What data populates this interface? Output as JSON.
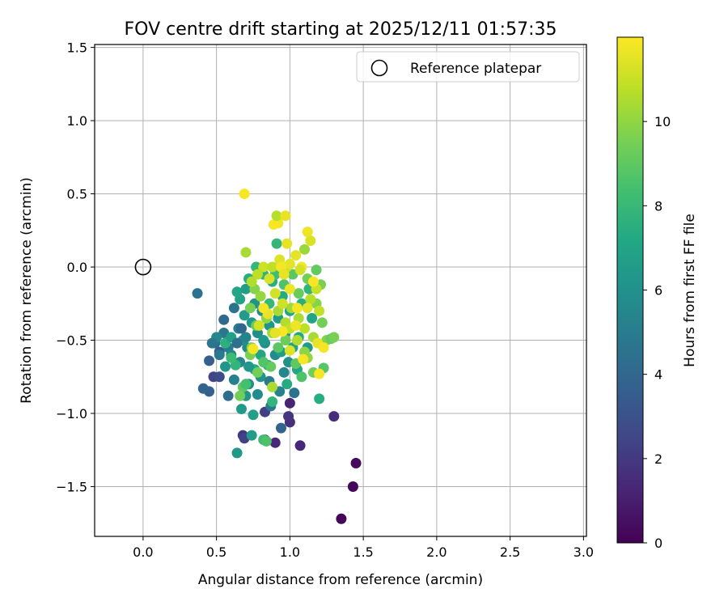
{
  "chart_data": {
    "type": "scatter",
    "title": "FOV centre drift starting at 2025/12/11 01:57:35",
    "xlabel": "Angular distance from reference (arcmin)",
    "ylabel": "Rotation from reference (arcmin)",
    "xlim": [
      -0.33,
      3.02
    ],
    "ylim": [
      -1.84,
      1.52
    ],
    "xticks": [
      0.0,
      0.5,
      1.0,
      1.5,
      2.0,
      2.5,
      3.0
    ],
    "xtick_labels": [
      "0.0",
      "0.5",
      "1.0",
      "1.5",
      "2.0",
      "2.5",
      "3.0"
    ],
    "yticks": [
      -1.5,
      -1.0,
      -0.5,
      0.0,
      0.5,
      1.0,
      1.5
    ],
    "ytick_labels": [
      "−1.5",
      "−1.0",
      "−0.5",
      "0.0",
      "0.5",
      "1.0",
      "1.5"
    ],
    "grid": true,
    "legend": {
      "location": "top-right",
      "entries": [
        "Reference platepar"
      ]
    },
    "reference_point": {
      "x": 0.0,
      "y": 0.0,
      "label": "Reference platepar"
    },
    "colorbar": {
      "label": "Hours from first FF file",
      "range": [
        0,
        12
      ],
      "ticks": [
        0,
        2,
        4,
        6,
        8,
        10
      ],
      "tick_labels": [
        "0",
        "2",
        "4",
        "6",
        "8",
        "10"
      ],
      "colormap": "viridis"
    },
    "points": [
      [
        1.35,
        -1.72,
        0.1
      ],
      [
        1.43,
        -1.5,
        0.2
      ],
      [
        1.45,
        -1.34,
        0.3
      ],
      [
        1.3,
        -1.02,
        1.5
      ],
      [
        1.07,
        -1.22,
        1.3
      ],
      [
        1.0,
        -1.06,
        1.6
      ],
      [
        0.99,
        -1.02,
        1.8
      ],
      [
        0.9,
        -1.2,
        1.4
      ],
      [
        0.83,
        -1.18,
        2.6
      ],
      [
        0.68,
        -1.15,
        1.9
      ],
      [
        0.69,
        -1.17,
        2.3
      ],
      [
        1.0,
        -0.93,
        1.2
      ],
      [
        0.83,
        -0.99,
        2.2
      ],
      [
        0.48,
        -0.75,
        2.4
      ],
      [
        0.52,
        -0.75,
        2.7
      ],
      [
        0.94,
        -1.1,
        3.9
      ],
      [
        0.45,
        -0.85,
        3.7
      ],
      [
        0.41,
        -0.83,
        3.9
      ],
      [
        0.45,
        -0.64,
        3.6
      ],
      [
        0.52,
        -0.58,
        3.3
      ],
      [
        0.58,
        -0.88,
        4.2
      ],
      [
        0.37,
        -0.18,
        4.5
      ],
      [
        0.55,
        -0.36,
        4.1
      ],
      [
        0.49,
        -0.52,
        4.3
      ],
      [
        0.62,
        -0.28,
        4.6
      ],
      [
        0.55,
        -0.45,
        4.8
      ],
      [
        0.58,
        -0.55,
        5.0
      ],
      [
        0.62,
        -0.77,
        5.2
      ],
      [
        0.66,
        -0.65,
        5.4
      ],
      [
        0.71,
        -0.55,
        5.6
      ],
      [
        0.64,
        -1.27,
        6.4
      ],
      [
        0.74,
        -1.15,
        6.6
      ],
      [
        0.75,
        -1.01,
        6.8
      ],
      [
        0.67,
        -0.97,
        6.5
      ],
      [
        0.7,
        -0.88,
        6.2
      ],
      [
        0.78,
        -0.87,
        5.7
      ],
      [
        0.8,
        -0.75,
        6.1
      ],
      [
        0.72,
        -0.8,
        5.9
      ],
      [
        0.86,
        -0.78,
        5.0
      ],
      [
        0.87,
        -0.95,
        4.8
      ],
      [
        0.93,
        -0.85,
        5.3
      ],
      [
        0.96,
        -0.72,
        5.5
      ],
      [
        1.03,
        -0.86,
        4.6
      ],
      [
        0.9,
        -0.6,
        5.6
      ],
      [
        0.83,
        -0.52,
        6.0
      ],
      [
        0.78,
        -0.45,
        5.8
      ],
      [
        0.74,
        -0.38,
        6.3
      ],
      [
        0.69,
        -0.33,
        6.6
      ],
      [
        0.66,
        -0.22,
        6.9
      ],
      [
        0.64,
        -0.17,
        7.1
      ],
      [
        0.7,
        -0.15,
        6.7
      ],
      [
        0.76,
        -0.25,
        6.1
      ],
      [
        0.81,
        -0.3,
        5.7
      ],
      [
        0.86,
        -0.4,
        6.2
      ],
      [
        0.92,
        -0.35,
        6.5
      ],
      [
        0.97,
        -0.45,
        6.8
      ],
      [
        1.02,
        -0.55,
        6.9
      ],
      [
        1.06,
        -0.48,
        7.2
      ],
      [
        1.0,
        -0.3,
        7.0
      ],
      [
        0.95,
        -0.2,
        7.3
      ],
      [
        0.88,
        -0.1,
        7.5
      ],
      [
        0.82,
        -0.05,
        7.7
      ],
      [
        0.77,
        0.0,
        7.9
      ],
      [
        0.72,
        -0.08,
        7.4
      ],
      [
        1.05,
        -0.7,
        7.1
      ],
      [
        1.1,
        -0.62,
        7.6
      ],
      [
        0.98,
        -0.8,
        7.3
      ],
      [
        0.85,
        -0.67,
        7.5
      ],
      [
        0.8,
        -0.6,
        7.0
      ],
      [
        0.76,
        -0.7,
        7.2
      ],
      [
        0.88,
        -0.92,
        7.8
      ],
      [
        0.82,
        -1.18,
        8.2
      ],
      [
        0.84,
        -1.19,
        8.6
      ],
      [
        1.2,
        -0.9,
        7.4
      ],
      [
        0.91,
        0.16,
        7.9
      ],
      [
        0.82,
        -0.5,
        6.4
      ],
      [
        0.68,
        -0.5,
        6.0
      ],
      [
        0.6,
        -0.6,
        5.5
      ],
      [
        0.65,
        -0.42,
        5.2
      ],
      [
        0.72,
        -0.68,
        6.3
      ],
      [
        0.94,
        -0.58,
        6.7
      ],
      [
        0.99,
        -0.65,
        6.0
      ],
      [
        1.12,
        -0.55,
        6.5
      ],
      [
        1.15,
        -0.35,
        7.0
      ],
      [
        1.08,
        -0.25,
        7.5
      ],
      [
        1.13,
        -0.15,
        7.8
      ],
      [
        0.86,
        -0.25,
        8.0
      ],
      [
        0.9,
        -0.05,
        8.3
      ],
      [
        0.96,
        -0.12,
        8.6
      ],
      [
        1.02,
        -0.05,
        8.9
      ],
      [
        1.06,
        -0.18,
        9.2
      ],
      [
        1.12,
        -0.08,
        9.4
      ],
      [
        1.18,
        -0.02,
        9.1
      ],
      [
        1.21,
        -0.12,
        9.6
      ],
      [
        1.18,
        -0.25,
        9.8
      ],
      [
        1.22,
        -0.38,
        9.4
      ],
      [
        1.25,
        -0.5,
        9.7
      ],
      [
        1.28,
        -0.49,
        9.2
      ],
      [
        1.3,
        -0.48,
        9.5
      ],
      [
        1.23,
        -0.69,
        8.8
      ],
      [
        1.16,
        -0.72,
        9.4
      ],
      [
        1.1,
        -0.58,
        9.9
      ],
      [
        1.04,
        -0.66,
        9.0
      ],
      [
        1.08,
        -0.75,
        8.6
      ],
      [
        0.97,
        -0.5,
        9.3
      ],
      [
        0.92,
        -0.55,
        8.9
      ],
      [
        0.87,
        -0.68,
        9.1
      ],
      [
        0.82,
        -0.65,
        8.7
      ],
      [
        0.78,
        -0.72,
        9.4
      ],
      [
        0.73,
        -0.6,
        9.6
      ],
      [
        0.68,
        -0.82,
        9.0
      ],
      [
        0.74,
        -0.55,
        9.8
      ],
      [
        0.77,
        -0.4,
        9.3
      ],
      [
        0.73,
        -0.28,
        9.5
      ],
      [
        0.76,
        -0.15,
        9.8
      ],
      [
        0.8,
        -0.2,
        10.1
      ],
      [
        0.84,
        -0.35,
        10.0
      ],
      [
        0.88,
        -0.45,
        10.2
      ],
      [
        0.92,
        -0.3,
        10.4
      ],
      [
        0.97,
        -0.38,
        10.6
      ],
      [
        1.01,
        -0.28,
        10.3
      ],
      [
        1.06,
        -0.35,
        10.5
      ],
      [
        1.1,
        -0.42,
        10.8
      ],
      [
        1.14,
        -0.22,
        10.7
      ],
      [
        1.18,
        -0.15,
        11.0
      ],
      [
        1.2,
        -0.3,
        10.9
      ],
      [
        1.16,
        -0.48,
        10.4
      ],
      [
        1.12,
        -0.62,
        10.1
      ],
      [
        1.05,
        -0.5,
        10.6
      ],
      [
        1.0,
        -0.42,
        10.9
      ],
      [
        0.95,
        -0.25,
        11.1
      ],
      [
        0.9,
        -0.18,
        11.2
      ],
      [
        0.86,
        -0.08,
        11.3
      ],
      [
        0.82,
        0.0,
        11.1
      ],
      [
        0.78,
        -0.05,
        10.8
      ],
      [
        0.74,
        -0.1,
        10.6
      ],
      [
        0.7,
        0.1,
        10.4
      ],
      [
        0.88,
        0.0,
        10.8
      ],
      [
        0.93,
        0.05,
        11.4
      ],
      [
        0.98,
        0.0,
        11.0
      ],
      [
        1.04,
        0.08,
        11.5
      ],
      [
        1.1,
        0.12,
        10.2
      ],
      [
        1.14,
        0.18,
        11.3
      ],
      [
        1.12,
        0.24,
        11.7
      ],
      [
        0.98,
        0.16,
        11.6
      ],
      [
        0.92,
        0.3,
        11.8
      ],
      [
        0.89,
        0.29,
        11.9
      ],
      [
        0.91,
        0.35,
        10.7
      ],
      [
        0.97,
        0.35,
        11.6
      ],
      [
        0.69,
        0.5,
        11.9
      ],
      [
        1.0,
        -0.15,
        11.7
      ],
      [
        1.05,
        -0.28,
        11.8
      ],
      [
        0.95,
        -0.44,
        11.9
      ],
      [
        0.9,
        -0.45,
        11.5
      ],
      [
        0.85,
        -0.32,
        11.6
      ],
      [
        0.82,
        -0.28,
        11.8
      ],
      [
        0.79,
        -0.4,
        11.2
      ],
      [
        0.75,
        -0.56,
        11.8
      ],
      [
        0.88,
        -0.82,
        10.5
      ],
      [
        1.0,
        -0.57,
        11.4
      ],
      [
        1.09,
        -0.63,
        11.9
      ],
      [
        1.04,
        -0.4,
        11.7
      ],
      [
        1.12,
        -0.28,
        11.5
      ],
      [
        1.16,
        -0.1,
        11.9
      ],
      [
        1.08,
        0.0,
        11.8
      ],
      [
        1.0,
        0.02,
        11.5
      ],
      [
        0.94,
        0.0,
        11.8
      ],
      [
        0.96,
        -0.05,
        11.6
      ],
      [
        1.07,
        -0.02,
        11.2
      ],
      [
        1.19,
        -0.52,
        11.6
      ],
      [
        1.23,
        -0.55,
        11.8
      ],
      [
        1.2,
        -0.73,
        11.9
      ],
      [
        0.66,
        -0.88,
        9.4
      ],
      [
        0.7,
        -0.8,
        8.4
      ],
      [
        0.63,
        -0.67,
        7.8
      ],
      [
        0.6,
        -0.62,
        8.2
      ],
      [
        0.56,
        -0.52,
        7.6
      ],
      [
        0.6,
        -0.48,
        6.8
      ],
      [
        0.56,
        -0.68,
        6.2
      ],
      [
        0.5,
        -0.48,
        5.5
      ],
      [
        0.52,
        -0.6,
        4.9
      ],
      [
        0.47,
        -0.52,
        4.7
      ],
      [
        0.64,
        -0.52,
        4.4
      ],
      [
        0.67,
        -0.42,
        4.0
      ],
      [
        0.7,
        -0.48,
        5.3
      ]
    ]
  }
}
